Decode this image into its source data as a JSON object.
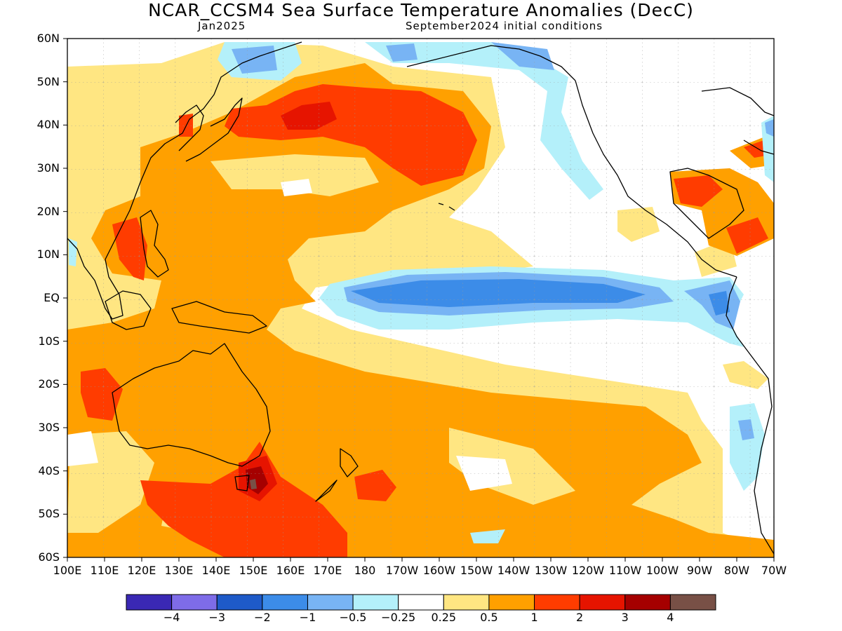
{
  "title": "NCAR_CCSM4 Sea Surface Temperature Anomalies (DecC)",
  "valid_month": "Jan2025",
  "init_conditions": "September2024 initial conditions",
  "lat_labels": [
    "60N",
    "50N",
    "40N",
    "30N",
    "20N",
    "10N",
    "EQ",
    "10S",
    "20S",
    "30S",
    "40S",
    "50S",
    "60S"
  ],
  "lon_labels": [
    "100E",
    "110E",
    "120E",
    "130E",
    "140E",
    "150E",
    "160E",
    "170E",
    "180",
    "170W",
    "160W",
    "150W",
    "140W",
    "130W",
    "120W",
    "110W",
    "100W",
    "90W",
    "80W",
    "70W"
  ],
  "colorbar": {
    "colors": [
      "#3a28b4",
      "#7e6ce8",
      "#1e5ac8",
      "#3c8ce8",
      "#78b4f4",
      "#b4f0fa",
      "#ffffff",
      "#ffe682",
      "#ffa000",
      "#ff3c00",
      "#e61400",
      "#a50000",
      "#785046"
    ],
    "labels": [
      "-4",
      "-3",
      "-2",
      "-1",
      "-0.5",
      "-0.25",
      "0.25",
      "0.5",
      "1",
      "2",
      "3",
      "4"
    ]
  }
}
